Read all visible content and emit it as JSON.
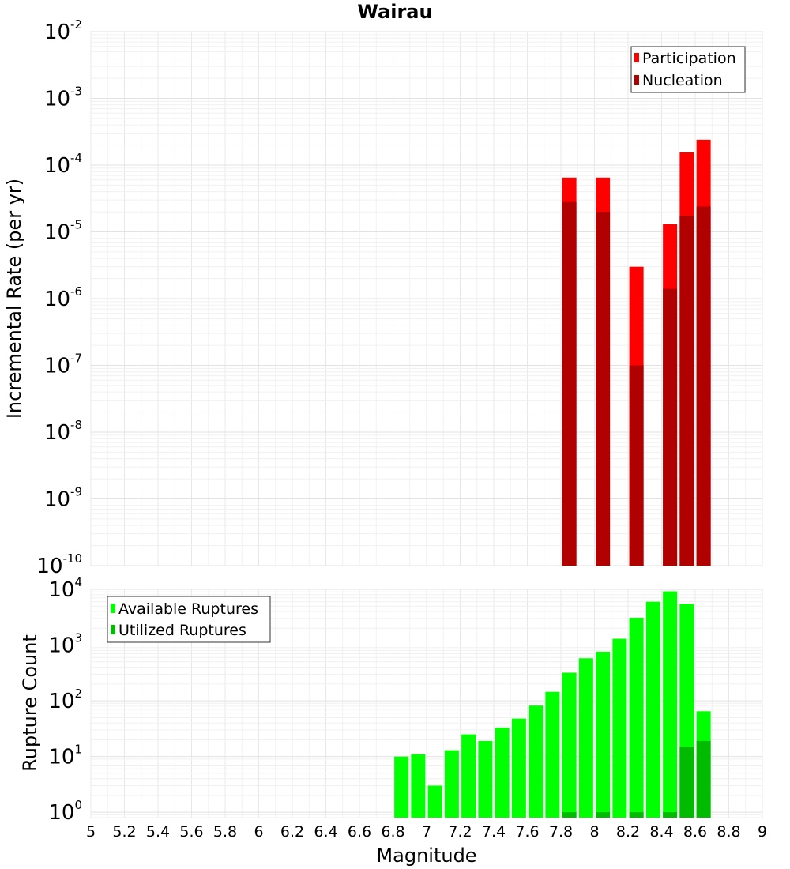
{
  "chart_data": [
    {
      "type": "bar",
      "title": "Wairau",
      "xlabel": "",
      "ylabel": "Incremental Rate (per yr)",
      "yscale": "log",
      "ylim": [
        1e-10,
        0.01
      ],
      "xlim": [
        5,
        9
      ],
      "grid": true,
      "legend_position": "top-right",
      "y_tick_labels": [
        {
          "base": "10",
          "exp": "-10"
        },
        {
          "base": "10",
          "exp": "-9"
        },
        {
          "base": "10",
          "exp": "-8"
        },
        {
          "base": "10",
          "exp": "-7"
        },
        {
          "base": "10",
          "exp": "-6"
        },
        {
          "base": "10",
          "exp": "-5"
        },
        {
          "base": "10",
          "exp": "-4"
        },
        {
          "base": "10",
          "exp": "-3"
        },
        {
          "base": "10",
          "exp": "-2"
        }
      ],
      "x": [
        7.85,
        8.05,
        8.25,
        8.45,
        8.55,
        8.65
      ],
      "series": [
        {
          "name": "Participation",
          "color": "#ff0000",
          "values": [
            6.5e-05,
            6.5e-05,
            3e-06,
            1.3e-05,
            0.000155,
            0.00024
          ]
        },
        {
          "name": "Nucleation",
          "color": "#b00000",
          "values": [
            2.8e-05,
            2e-05,
            1e-07,
            1.4e-06,
            1.75e-05,
            2.4e-05
          ]
        }
      ]
    },
    {
      "type": "bar",
      "title": "",
      "xlabel": "Magnitude",
      "ylabel": "Rupture Count",
      "yscale": "log",
      "ylim": [
        0.8,
        10000
      ],
      "xlim": [
        5,
        9
      ],
      "grid": true,
      "legend_position": "top-left",
      "x_tick_labels": [
        "5",
        "5.2",
        "5.4",
        "5.6",
        "5.8",
        "6",
        "6.2",
        "6.4",
        "6.6",
        "6.8",
        "7",
        "7.2",
        "7.4",
        "7.6",
        "7.8",
        "8",
        "8.2",
        "8.4",
        "8.6",
        "8.8",
        "9"
      ],
      "y_tick_labels": [
        {
          "base": "10",
          "exp": "0"
        },
        {
          "base": "10",
          "exp": "1"
        },
        {
          "base": "10",
          "exp": "2"
        },
        {
          "base": "10",
          "exp": "3"
        },
        {
          "base": "10",
          "exp": "4"
        }
      ],
      "x": [
        6.85,
        6.95,
        7.05,
        7.15,
        7.25,
        7.35,
        7.45,
        7.55,
        7.65,
        7.75,
        7.85,
        7.95,
        8.05,
        8.15,
        8.25,
        8.35,
        8.45,
        8.55,
        8.65
      ],
      "series": [
        {
          "name": "Available Ruptures",
          "color": "#00ff00",
          "values": [
            10,
            11,
            3,
            13,
            25,
            19,
            33,
            48,
            82,
            145,
            320,
            580,
            760,
            1300,
            3100,
            6000,
            9200,
            5500,
            65
          ]
        },
        {
          "name": "Utilized Ruptures",
          "color": "#00bb00",
          "values": [
            0,
            0,
            0,
            0,
            0,
            0,
            0,
            0,
            0,
            0,
            1,
            0,
            1,
            0,
            1,
            0,
            1,
            15,
            19
          ]
        }
      ]
    }
  ]
}
